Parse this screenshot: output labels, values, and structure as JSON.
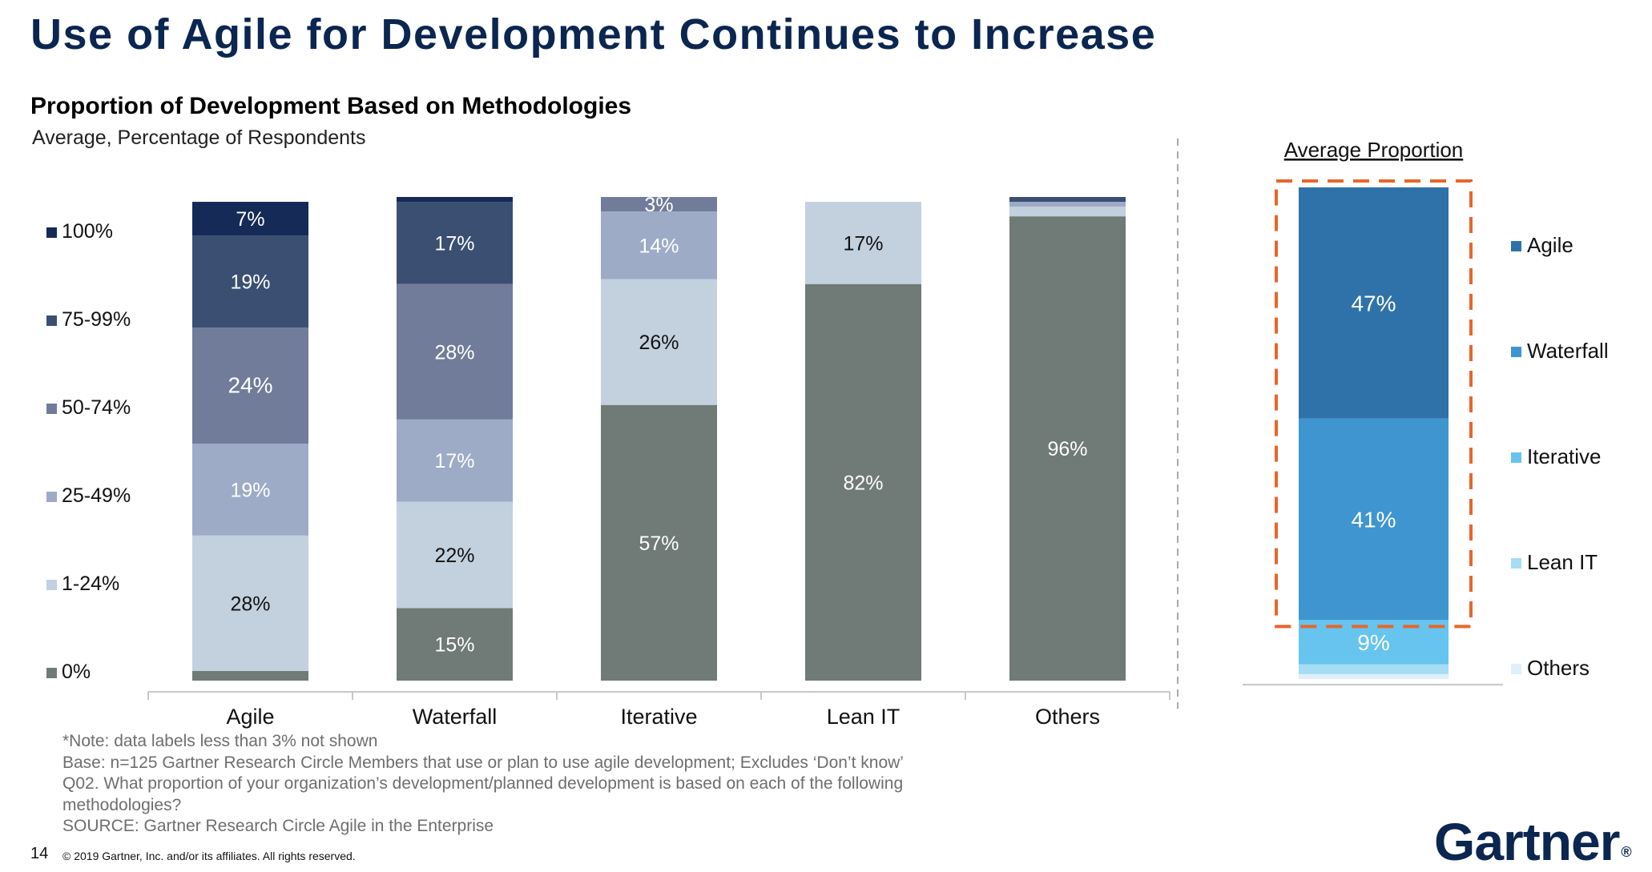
{
  "page": {
    "title": "Use of Agile for Development Continues to Increase",
    "chart_title": "Proportion of Development Based on Methodologies",
    "chart_subtitle": "Average, Percentage of Respondents",
    "notes": [
      "*Note: data labels less than 3% not shown",
      "Base: n=125 Gartner Research Circle Members that use or plan to use agile development; Excludes ‘Don’t know’",
      "Q02. What proportion of your organization’s development/planned development is based on each of the following methodologies?",
      "SOURCE: Gartner Research Circle Agile in the Enterprise"
    ],
    "page_number": "14",
    "copyright": "© 2019 Gartner, Inc. and/or its affiliates. All rights reserved.",
    "logo_text": "Gartner",
    "logo_mark": "®"
  },
  "chart_data": [
    {
      "type": "bar",
      "stacked": true,
      "title": "Proportion of Development Based on Methodologies",
      "subtitle": "Average, Percentage of Respondents",
      "categories": [
        "Agile",
        "Waterfall",
        "Iterative",
        "Lean IT",
        "Others"
      ],
      "legend_position": "left",
      "label_threshold_percent": 3,
      "series": [
        {
          "name": "0%",
          "color": "#707a76",
          "values": [
            2,
            15,
            57,
            82,
            96
          ]
        },
        {
          "name": "1-24%",
          "color": "#c3d0de",
          "values": [
            28,
            22,
            26,
            17,
            2
          ]
        },
        {
          "name": "25-49%",
          "color": "#9eabc6",
          "values": [
            19,
            17,
            14,
            0,
            1
          ]
        },
        {
          "name": "50-74%",
          "color": "#717c9a",
          "values": [
            24,
            28,
            3,
            0,
            0
          ]
        },
        {
          "name": "75-99%",
          "color": "#3b4f73",
          "values": [
            19,
            17,
            0,
            0,
            1
          ]
        },
        {
          "name": "100%",
          "color": "#152a57",
          "values": [
            7,
            1,
            0,
            0,
            0
          ]
        }
      ],
      "value_labels": [
        [
          "",
          "28%",
          "19%",
          "24%",
          "19%",
          "7%"
        ],
        [
          "15%",
          "22%",
          "17%",
          "28%",
          "17%",
          ""
        ],
        [
          "57%",
          "26%",
          "14%",
          "3%",
          "",
          ""
        ],
        [
          "82%",
          "17%",
          "",
          "",
          "",
          ""
        ],
        [
          "96%",
          "",
          "",
          "",
          "",
          ""
        ]
      ],
      "ylim": [
        0,
        100
      ]
    },
    {
      "type": "bar",
      "stacked": true,
      "title": "Average Proportion",
      "categories": [
        ""
      ],
      "legend_position": "right",
      "highlight": "Agile and Waterfall segments outlined with orange dashed box",
      "series": [
        {
          "name": "Others",
          "color": "#dff0fb",
          "values": [
            1
          ]
        },
        {
          "name": "Lean IT",
          "color": "#a6dcf4",
          "values": [
            2
          ]
        },
        {
          "name": "Iterative",
          "color": "#66c4ef",
          "values": [
            9
          ]
        },
        {
          "name": "Waterfall",
          "color": "#3e95d0",
          "values": [
            41
          ]
        },
        {
          "name": "Agile",
          "color": "#2f72aa",
          "values": [
            47
          ]
        }
      ],
      "legend_order": [
        "Agile",
        "Waterfall",
        "Iterative",
        "Lean IT",
        "Others"
      ],
      "value_labels": [
        "",
        "",
        "9%",
        "41%",
        "47%"
      ],
      "highlight_color": "#e8662b",
      "ylim": [
        0,
        100
      ]
    }
  ]
}
